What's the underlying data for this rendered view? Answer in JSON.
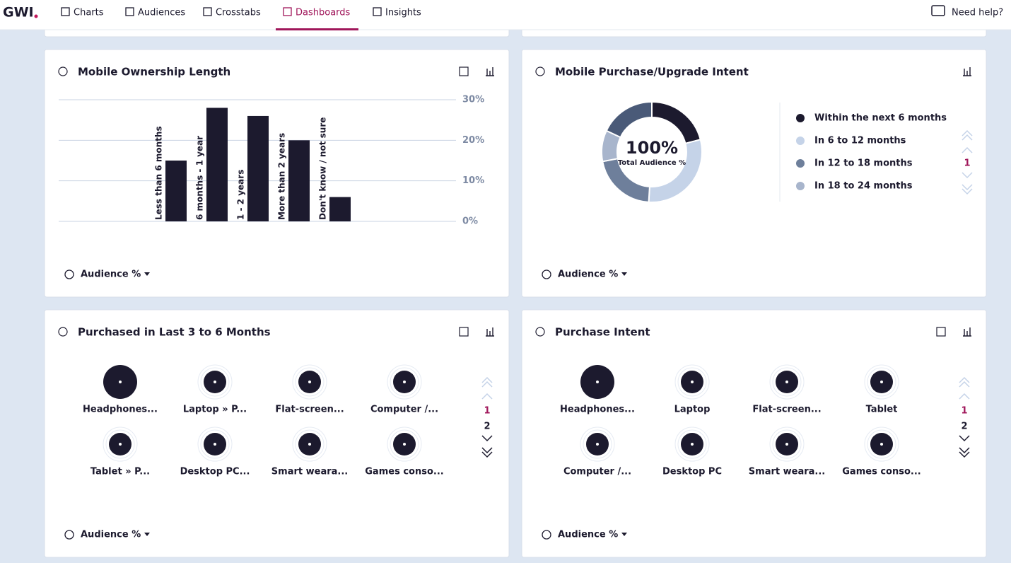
{
  "nav": {
    "logo": "GWI",
    "items": [
      "Charts",
      "Audiences",
      "Crosstabs",
      "Dashboards",
      "Insights"
    ],
    "active": "Dashboards",
    "help": "Need help?"
  },
  "panels": [
    {
      "title": "Mobile Ownership Length",
      "footer": "Audience %",
      "chart_data": {
        "type": "bar",
        "categories": [
          "Less than 6 months",
          "6 months - 1 year",
          "1 - 2 years",
          "More than 2 years",
          "Don't know / not sure"
        ],
        "values": [
          15,
          28,
          26,
          20,
          6
        ],
        "color": "#1c1a2e",
        "ylim": [
          0,
          30
        ],
        "yticks": [
          {
            "value": 0,
            "label": "0%"
          },
          {
            "value": 10,
            "label": "10%"
          },
          {
            "value": 20,
            "label": "20%"
          },
          {
            "value": 30,
            "label": "30%"
          }
        ],
        "grid": true
      }
    },
    {
      "title": "Mobile Purchase/Upgrade Intent",
      "footer": "Audience %",
      "pager": [
        "1"
      ],
      "chart_data": {
        "type": "donut",
        "center_value": "100%",
        "center_label": "Total Audience %",
        "categories": [
          "Within the next 6 months",
          "In 6 to 12 months",
          "In 12 to 18 months",
          "In 18 to 24 months",
          null
        ],
        "values": [
          21,
          30,
          21,
          10,
          18
        ],
        "colors": [
          "#1c1a2e",
          "#c5d3e8",
          "#6e7f9b",
          "#a8b5cc",
          "#4a5a78"
        ]
      }
    },
    {
      "title": "Purchased in Last 3 to 6 Months",
      "footer": "Audience %",
      "pager": [
        "1",
        "2"
      ],
      "items": [
        "Headphones...",
        "Laptop » P...",
        "Flat-screen...",
        "Computer /...",
        "Tablet » P...",
        "Desktop PC...",
        "Smart weara...",
        "Games conso..."
      ]
    },
    {
      "title": "Purchase Intent",
      "footer": "Audience %",
      "pager": [
        "1",
        "2"
      ],
      "items": [
        "Headphones...",
        "Laptop",
        "Flat-screen...",
        "Tablet",
        "Computer /...",
        "Desktop PC",
        "Smart weara...",
        "Games conso..."
      ]
    }
  ]
}
